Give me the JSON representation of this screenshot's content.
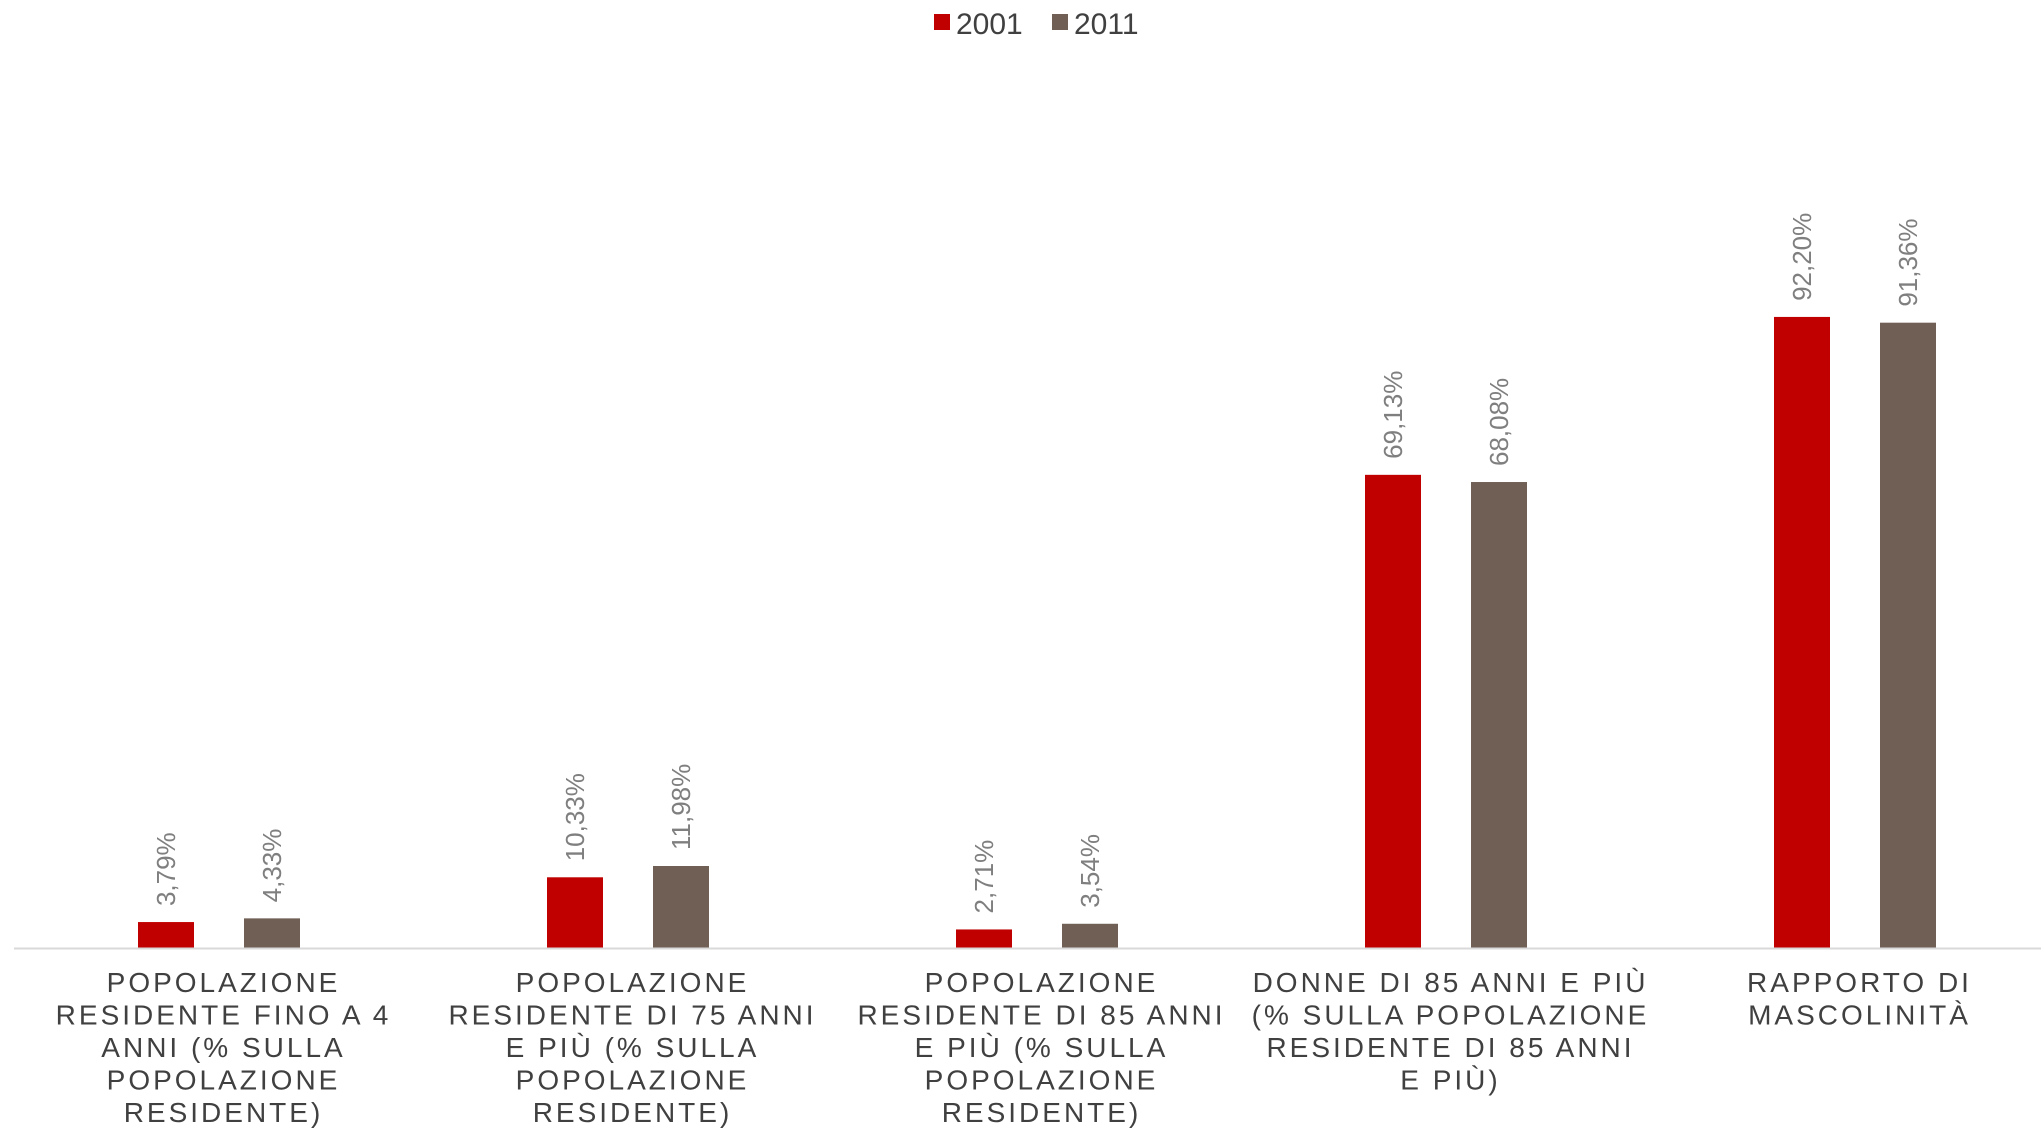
{
  "chart_data": {
    "type": "bar",
    "title": "",
    "xlabel": "",
    "ylabel": "",
    "ylim": [
      0,
      100
    ],
    "grid": false,
    "legend_position": "top-center",
    "categories": [
      [
        "POPOLAZIONE",
        "RESIDENTE FINO A 4",
        "ANNI (% SULLA",
        "POPOLAZIONE",
        "RESIDENTE)"
      ],
      [
        "POPOLAZIONE",
        "RESIDENTE DI 75 ANNI",
        "E PIÙ (% SULLA",
        "POPOLAZIONE",
        "RESIDENTE)"
      ],
      [
        "POPOLAZIONE",
        "RESIDENTE DI 85 ANNI",
        "E PIÙ (% SULLA",
        "POPOLAZIONE",
        "RESIDENTE)"
      ],
      [
        "DONNE DI 85 ANNI E PIÙ",
        "(% SULLA POPOLAZIONE",
        "RESIDENTE DI 85 ANNI",
        "E PIÙ)"
      ],
      [
        "RAPPORTO DI",
        "MASCOLINITÀ"
      ]
    ],
    "series": [
      {
        "name": "2001",
        "color": "#c00000",
        "values": [
          3.79,
          10.33,
          2.71,
          69.13,
          92.2
        ],
        "labels": [
          "3,79%",
          "10,33%",
          "2,71%",
          "69,13%",
          "92,20%"
        ]
      },
      {
        "name": "2011",
        "color": "#6f5f55",
        "values": [
          4.33,
          11.98,
          3.54,
          68.08,
          91.36
        ],
        "labels": [
          "4,33%",
          "11,98%",
          "3,54%",
          "68,08%",
          "91,36%"
        ]
      }
    ],
    "axis_color": "#d9d9d9"
  }
}
